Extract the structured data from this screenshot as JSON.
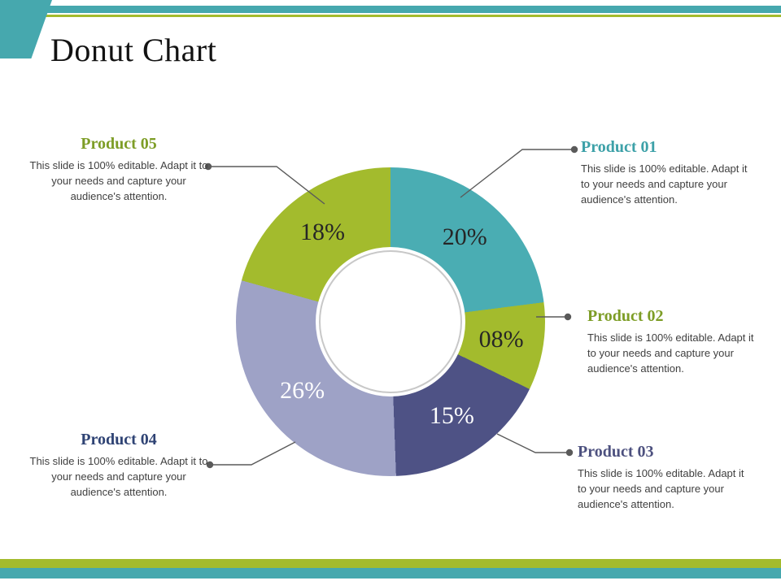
{
  "slide": {
    "title": "Donut Chart",
    "theme": {
      "teal": "#46a8ae",
      "olive": "#a3bb2d",
      "background": "#ffffff",
      "line_gray": "#5a5a5a"
    }
  },
  "callouts": [
    {
      "label": "Product 01",
      "color": "#3da1a8",
      "description": "This slide is 100% editable. Adapt it to your needs and capture your audience's attention."
    },
    {
      "label": "Product 02",
      "color": "#7d9d26",
      "description": "This slide is 100% editable. Adapt it to your needs and capture your audience's attention."
    },
    {
      "label": "Product 03",
      "color": "#4d517f",
      "description": "This slide is 100% editable. Adapt it to your needs and capture your audience's attention."
    },
    {
      "label": "Product 04",
      "color": "#2f4374",
      "description": "This slide is 100% editable. Adapt it to your needs and capture your audience's attention."
    },
    {
      "label": "Product 05",
      "color": "#7d9d26",
      "description": "This slide is 100% editable. Adapt it to your needs and capture your audience's attention."
    }
  ],
  "chart_data": {
    "type": "donut",
    "title": "Donut Chart",
    "direction": "clockwise",
    "start_angle_deg": 0,
    "hole_ratio": 0.48,
    "segments": [
      {
        "label": "Product 01",
        "value": 20,
        "display": "20%",
        "color": "#4aadb3",
        "label_color": "#262626"
      },
      {
        "label": "Product 02",
        "value": 8,
        "display": "08%",
        "color": "#a3bb2d",
        "label_color": "#262626"
      },
      {
        "label": "Product 03",
        "value": 15,
        "display": "15%",
        "color": "#4e5285",
        "label_color": "#ffffff"
      },
      {
        "label": "Product 04",
        "value": 26,
        "display": "26%",
        "color": "#9ea2c6",
        "label_color": "#ffffff"
      },
      {
        "label": "Product 05",
        "value": 18,
        "display": "18%",
        "color": "#a3bb2d",
        "label_color": "#262626"
      }
    ]
  }
}
